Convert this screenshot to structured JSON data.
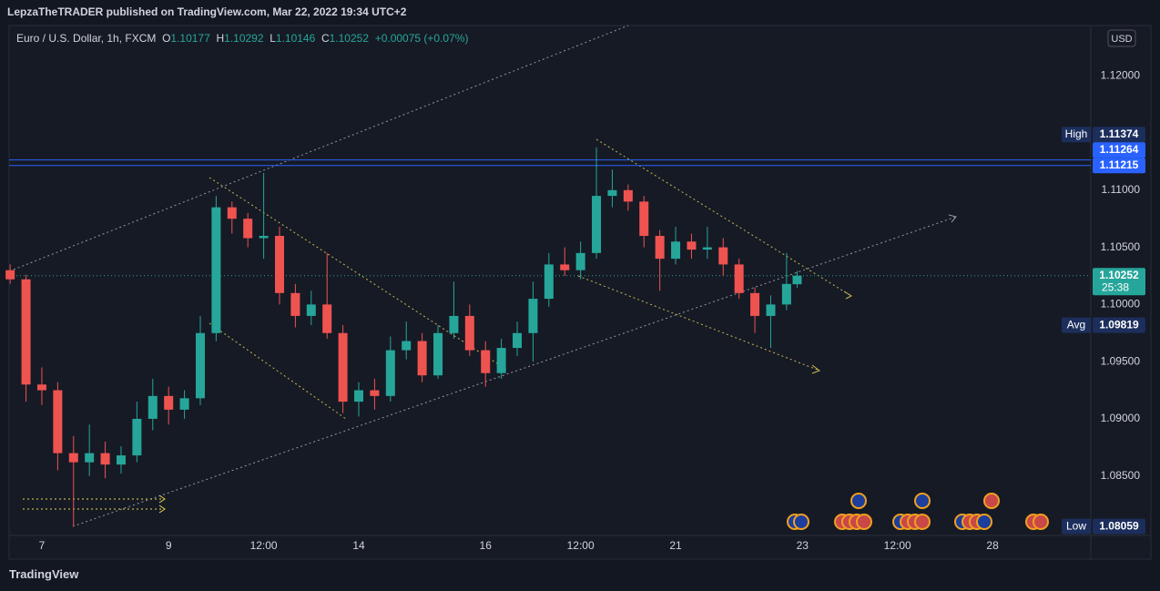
{
  "header": {
    "text": "LepzaTheTRADER published on TradingView.com, Mar 22, 2022 19:34 UTC+2"
  },
  "footer": {
    "brand": "TradingView"
  },
  "chart_data": {
    "type": "candlestick",
    "title": "Euro / U.S. Dollar, 1h, FXCM",
    "ohlc_labels": [
      "O",
      "H",
      "L",
      "C"
    ],
    "change": "+0.00075",
    "change_pct": "(+0.07%)",
    "currency": "USD",
    "up_color": "#26a69a",
    "down_color": "#ef5350",
    "x": [
      -12,
      -6,
      0,
      6,
      12,
      18,
      24,
      30,
      36,
      42,
      48,
      54,
      60,
      66,
      72,
      78,
      84,
      90,
      96,
      102,
      108,
      114,
      120,
      126,
      132,
      138,
      144,
      150,
      156,
      162,
      168,
      174,
      180,
      186,
      192,
      198,
      204,
      210,
      216,
      222,
      228,
      234,
      240,
      246,
      252,
      258,
      264,
      270,
      276,
      282,
      286
    ],
    "series": [
      {
        "open": [
          1.103,
          1.1022,
          1.093,
          1.0925,
          1.087,
          1.0862,
          1.087,
          1.086,
          1.0868,
          1.09,
          1.092,
          1.0908,
          1.0918,
          1.0975,
          1.1085,
          1.1075,
          1.1058,
          1.106,
          1.101,
          1.099,
          1.1,
          1.0975,
          1.0915,
          1.0925,
          1.092,
          1.096,
          1.0968,
          1.0938,
          1.0975,
          1.099,
          1.096,
          1.094,
          1.0962,
          1.0975,
          1.1005,
          1.1035,
          1.103,
          1.1045,
          1.1095,
          1.11,
          1.109,
          1.106,
          1.104,
          1.1055,
          1.1048,
          1.105,
          1.1035,
          1.101,
          1.099,
          1.1,
          1.10177
        ],
        "high": [
          1.1035,
          1.1026,
          1.0945,
          1.0932,
          1.0885,
          1.0895,
          1.088,
          1.0876,
          1.0915,
          1.0935,
          1.0928,
          1.0925,
          1.099,
          1.1095,
          1.109,
          1.108,
          1.1115,
          1.1068,
          1.1018,
          1.1012,
          1.1045,
          1.0982,
          1.0932,
          1.0935,
          1.0972,
          1.0985,
          1.0975,
          1.0982,
          1.102,
          1.1,
          1.0968,
          1.097,
          1.0985,
          1.102,
          1.1045,
          1.105,
          1.1055,
          1.11374,
          1.1118,
          1.1105,
          1.1095,
          1.1065,
          1.1068,
          1.1062,
          1.1068,
          1.1058,
          1.104,
          1.1015,
          1.1008,
          1.1045,
          1.10292
        ],
        "low": [
          1.1018,
          1.0915,
          1.0912,
          1.0855,
          1.08059,
          1.085,
          1.0848,
          1.0852,
          1.0862,
          1.089,
          1.0895,
          1.09,
          1.0912,
          1.0968,
          1.1062,
          1.105,
          1.104,
          1.1,
          1.098,
          1.0982,
          1.097,
          1.0905,
          1.0902,
          1.0908,
          1.0915,
          1.0952,
          1.0932,
          1.0935,
          1.097,
          1.0955,
          1.0928,
          1.0935,
          1.0955,
          1.095,
          1.0998,
          1.1025,
          1.1022,
          1.104,
          1.1085,
          1.1082,
          1.105,
          1.1012,
          1.1035,
          1.104,
          1.104,
          1.1025,
          1.1005,
          1.0975,
          1.0962,
          1.0995,
          1.10146
        ],
        "close": [
          1.1022,
          1.093,
          1.0925,
          1.087,
          1.0862,
          1.087,
          1.086,
          1.0868,
          1.09,
          1.092,
          1.0908,
          1.0918,
          1.0975,
          1.1085,
          1.1075,
          1.1058,
          1.106,
          1.101,
          1.099,
          1.1,
          1.0975,
          1.0915,
          1.0925,
          1.092,
          1.096,
          1.0968,
          1.0938,
          1.0975,
          1.099,
          1.096,
          1.094,
          1.0962,
          1.0975,
          1.1005,
          1.1035,
          1.103,
          1.1045,
          1.1095,
          1.11,
          1.109,
          1.106,
          1.104,
          1.1055,
          1.1048,
          1.105,
          1.1035,
          1.101,
          1.099,
          1.1,
          1.1018,
          1.10252
        ]
      }
    ],
    "xlim": [
      -12.4,
      397.2
    ],
    "xticks": [
      {
        "value": 0,
        "label": "7"
      },
      {
        "value": 48,
        "label": "9"
      },
      {
        "value": 84,
        "label": "12:00"
      },
      {
        "value": 120,
        "label": "14"
      },
      {
        "value": 168,
        "label": "16"
      },
      {
        "value": 204,
        "label": "12:00"
      },
      {
        "value": 240,
        "label": "21"
      },
      {
        "value": 288,
        "label": "23"
      },
      {
        "value": 324,
        "label": "12:00"
      },
      {
        "value": 360,
        "label": "28"
      }
    ],
    "ylim": [
      1.0798,
      1.1244
    ],
    "yticks": [
      {
        "value": 1.085,
        "label": "1.08500"
      },
      {
        "value": 1.09,
        "label": "1.09000"
      },
      {
        "value": 1.095,
        "label": "1.09500"
      },
      {
        "value": 1.1,
        "label": "1.10000"
      },
      {
        "value": 1.105,
        "label": "1.10500"
      },
      {
        "value": 1.11,
        "label": "1.11000"
      },
      {
        "value": 1.12,
        "label": "1.12000"
      }
    ],
    "grid": false,
    "levels": [
      {
        "label": "High",
        "value": 1.11374,
        "color": "#1c2e5c"
      },
      {
        "value": 1.11264,
        "color": "#2962ff",
        "line": "solid"
      },
      {
        "value": 1.11215,
        "color": "#2962ff",
        "line": "solid"
      },
      {
        "value": 1.10252,
        "countdown": "25:38",
        "color": "#26a69a",
        "line": "dotted"
      },
      {
        "label": "Avg",
        "value": 1.09819,
        "color": "#1c2e5c"
      },
      {
        "label": "Low",
        "value": 1.08059,
        "color": "#1c2e5c"
      }
    ]
  }
}
